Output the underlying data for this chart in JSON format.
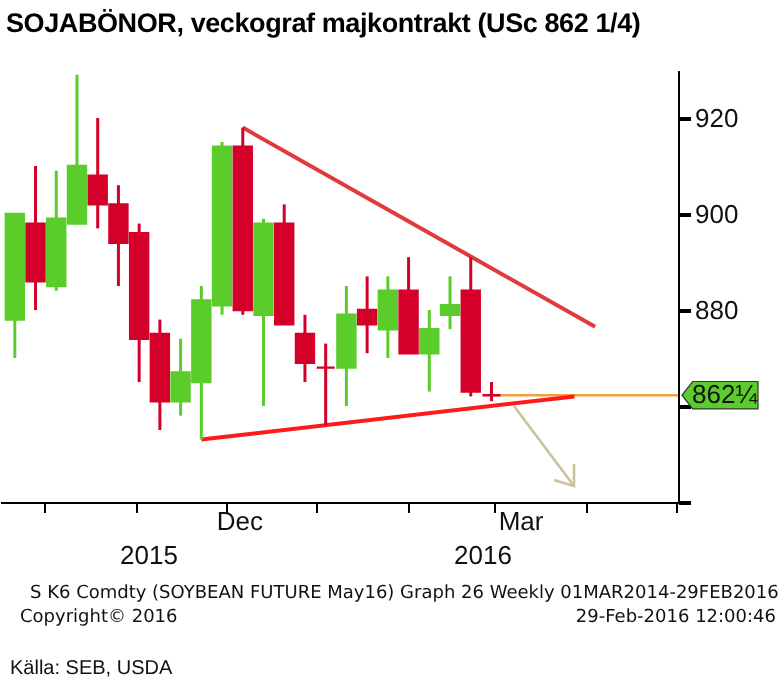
{
  "chart_data": {
    "type": "candlestick",
    "title": "SOJABÖNOR, veckograf majkontrakt (USc 862 1/4)",
    "x": [
      "2015-09-21",
      "2015-09-28",
      "2015-10-05",
      "2015-10-12",
      "2015-10-19",
      "2015-10-26",
      "2015-11-02",
      "2015-11-09",
      "2015-11-16",
      "2015-11-23",
      "2015-11-30",
      "2015-12-07",
      "2015-12-14",
      "2015-12-21",
      "2015-12-28",
      "2016-01-04",
      "2016-01-11",
      "2016-01-18",
      "2016-01-25",
      "2016-02-01",
      "2016-02-08",
      "2016-02-15",
      "2016-02-22",
      "2016-02-29"
    ],
    "ohlc": [
      [
        878,
        900,
        870,
        900
      ],
      [
        898,
        910,
        880,
        886
      ],
      [
        885,
        909,
        884,
        899
      ],
      [
        898,
        929,
        898,
        910
      ],
      [
        908,
        920,
        897,
        902
      ],
      [
        902,
        906,
        885,
        894
      ],
      [
        896,
        898,
        865,
        874
      ],
      [
        875,
        878,
        855,
        861
      ],
      [
        861,
        874,
        858,
        867
      ],
      [
        865,
        885,
        853,
        882
      ],
      [
        881,
        915,
        879,
        914
      ],
      [
        914,
        918,
        879,
        880
      ],
      [
        879,
        899,
        860,
        898
      ],
      [
        898,
        902,
        877,
        877
      ],
      [
        875,
        879,
        865,
        869
      ],
      [
        868,
        873,
        856,
        868
      ],
      [
        868,
        885,
        860,
        879
      ],
      [
        880,
        887,
        871,
        877
      ],
      [
        876,
        887,
        870,
        884
      ],
      [
        884,
        891,
        871,
        871
      ],
      [
        871,
        880,
        863,
        876
      ],
      [
        879,
        887,
        876,
        881
      ],
      [
        884,
        891,
        862,
        863
      ],
      [
        862.25,
        865,
        861,
        862.25
      ]
    ],
    "colors": [
      "#5acd2a",
      "#d4002a",
      "#5acd2a",
      "#5acd2a",
      "#d4002a",
      "#d4002a",
      "#d4002a",
      "#d4002a",
      "#5acd2a",
      "#5acd2a",
      "#5acd2a",
      "#d4002a",
      "#5acd2a",
      "#d4002a",
      "#d4002a",
      "#d4002a",
      "#5acd2a",
      "#d4002a",
      "#5acd2a",
      "#d4002a",
      "#5acd2a",
      "#5acd2a",
      "#d4002a",
      "#d4002a"
    ],
    "series": [
      {
        "type": "line",
        "x": [
          "2015-12-07",
          "2016-04-04"
        ],
        "values": [
          918,
          876.5
        ],
        "color": "#e03a3a"
      },
      {
        "type": "line",
        "x": [
          "2015-11-23",
          "2016-03-28"
        ],
        "values": [
          853,
          862
        ],
        "color": "#ff1a1a"
      }
    ],
    "ref_lines": [
      {
        "axis": "y",
        "value": 862.25,
        "label": "862¼",
        "color": "#f0a040"
      }
    ],
    "xlim": [
      "2015-09-16",
      "2016-05-02"
    ],
    "xticks": [
      {
        "value": "2015-10-01",
        "label": null
      },
      {
        "value": "2015-11-01",
        "label": null
      },
      {
        "value": "2015-12-01",
        "label": null
      },
      {
        "value": "2015-12-06",
        "label": "Dec"
      },
      {
        "value": "2016-01-01",
        "label": null
      },
      {
        "value": "2016-02-01",
        "label": null
      },
      {
        "value": "2016-03-01",
        "label": null
      },
      {
        "value": "2016-03-10",
        "label": "Mar"
      },
      {
        "value": "2016-04-01",
        "label": null
      },
      {
        "value": "2016-05-01",
        "label": null
      }
    ],
    "ylim": [
      840,
      930
    ],
    "yticks": [
      {
        "value": 840,
        "label": null
      },
      {
        "value": 860,
        "label": null
      },
      {
        "value": 880,
        "label": "880"
      },
      {
        "value": 900,
        "label": "900"
      },
      {
        "value": 920,
        "label": "920"
      }
    ],
    "annotations": [
      "2015",
      "2016",
      "S K6 Comdty (SOYBEAN FUTURE May16) Graph 26 Weekly 01MAR2014-29FEB2016",
      "Copyright© 2016",
      "29-Feb-2016 12:00:46",
      "Källa: SEB, USDA"
    ]
  }
}
